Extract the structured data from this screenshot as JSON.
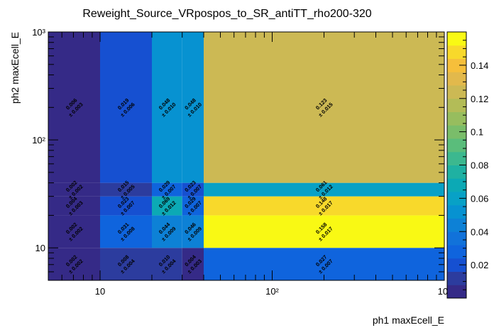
{
  "chart_data": {
    "type": "heatmap",
    "title": "Reweight_Source_VRpospos_to_SR_antiTT_rho200-320",
    "xlabel": "ph1 maxEcell_E",
    "ylabel": "ph2 maxEcell_E",
    "xscale": "log",
    "yscale": "log",
    "xlim": [
      5,
      1000
    ],
    "ylim": [
      5,
      1000
    ],
    "x_edges": [
      5,
      10,
      20,
      30,
      40,
      1000
    ],
    "y_edges": [
      5,
      10,
      20,
      30,
      40,
      1000
    ],
    "x_ticks": [
      {
        "value": 10,
        "label": "10"
      },
      {
        "value": 100,
        "label": "10²"
      },
      {
        "value": 1000,
        "label": "10³"
      }
    ],
    "y_ticks": [
      {
        "value": 10,
        "label": "10"
      },
      {
        "value": 100,
        "label": "10²"
      },
      {
        "value": 1000,
        "label": "10³"
      }
    ],
    "zlim": [
      0,
      0.16
    ],
    "z_ticks": [
      "0.02",
      "0.04",
      "0.06",
      "0.08",
      "0.1",
      "0.12",
      "0.14"
    ],
    "z_tick_values": [
      0.02,
      0.04,
      0.06,
      0.08,
      0.1,
      0.12,
      0.14
    ],
    "grid": false,
    "cells": [
      {
        "ix": 0,
        "iy": 0,
        "value": 0.002,
        "label": "0.002",
        "err": "± 0.002"
      },
      {
        "ix": 1,
        "iy": 0,
        "value": 0.008,
        "label": "0.008",
        "err": "± 0.004"
      },
      {
        "ix": 2,
        "iy": 0,
        "value": 0.01,
        "label": "0.010",
        "err": "± 0.004"
      },
      {
        "ix": 3,
        "iy": 0,
        "value": 0.004,
        "label": "0.004",
        "err": "± 0.003"
      },
      {
        "ix": 4,
        "iy": 0,
        "value": 0.027,
        "label": "0.027",
        "err": "± 0.007"
      },
      {
        "ix": 0,
        "iy": 1,
        "value": 0.002,
        "label": "0.002",
        "err": "± 0.002"
      },
      {
        "ix": 1,
        "iy": 1,
        "value": 0.031,
        "label": "0.031",
        "err": "± 0.008"
      },
      {
        "ix": 2,
        "iy": 1,
        "value": 0.044,
        "label": "0.044",
        "err": "± 0.009"
      },
      {
        "ix": 3,
        "iy": 1,
        "value": 0.046,
        "label": "0.046",
        "err": "± 0.009"
      },
      {
        "ix": 4,
        "iy": 1,
        "value": 0.158,
        "label": "0.158",
        "err": "± 0.017"
      },
      {
        "ix": 0,
        "iy": 2,
        "value": 0.004,
        "label": "0.004",
        "err": "± 0.003"
      },
      {
        "ix": 1,
        "iy": 2,
        "value": 0.023,
        "label": "0.023",
        "err": "± 0.007"
      },
      {
        "ix": 2,
        "iy": 2,
        "value": 0.069,
        "label": "0.069",
        "err": "± 0.012"
      },
      {
        "ix": 3,
        "iy": 2,
        "value": 0.029,
        "label": "0.029",
        "err": "± 0.007"
      },
      {
        "ix": 4,
        "iy": 2,
        "value": 0.148,
        "label": "0.148",
        "err": "± 0.017"
      },
      {
        "ix": 0,
        "iy": 3,
        "value": 0.002,
        "label": "0.002",
        "err": "± 0.002"
      },
      {
        "ix": 1,
        "iy": 3,
        "value": 0.015,
        "label": "0.015",
        "err": "± 0.005"
      },
      {
        "ix": 2,
        "iy": 3,
        "value": 0.029,
        "label": "0.029",
        "err": "± 0.007"
      },
      {
        "ix": 3,
        "iy": 3,
        "value": 0.023,
        "label": "0.023",
        "err": "± 0.007"
      },
      {
        "ix": 4,
        "iy": 3,
        "value": 0.061,
        "label": "0.061",
        "err": "± 0.012"
      },
      {
        "ix": 0,
        "iy": 4,
        "value": 0.006,
        "label": "0.006",
        "err": "± 0.003"
      },
      {
        "ix": 1,
        "iy": 4,
        "value": 0.019,
        "label": "0.019",
        "err": "± 0.006"
      },
      {
        "ix": 2,
        "iy": 4,
        "value": 0.048,
        "label": "0.048",
        "err": "± 0.010"
      },
      {
        "ix": 3,
        "iy": 4,
        "value": 0.048,
        "label": "0.048",
        "err": "± 0.010"
      },
      {
        "ix": 4,
        "iy": 4,
        "value": 0.123,
        "label": "0.123",
        "err": "± 0.015"
      }
    ],
    "palette": [
      "#352a87",
      "#2c3c9e",
      "#1650d1",
      "#0f64dd",
      "#1172da",
      "#0d81d6",
      "#0792d1",
      "#08a1c6",
      "#0ca9b5",
      "#1fb1a2",
      "#3cb88f",
      "#5abd7b",
      "#7abd6a",
      "#97bd5e",
      "#b3bc57",
      "#ccb954",
      "#e2b94c",
      "#f6bf3b",
      "#f8d92b",
      "#f9f914"
    ],
    "bar_colors": [
      "#352a87",
      "#2c3c9e",
      "#1650d1",
      "#0f64dd",
      "#1172da",
      "#0d81d6",
      "#0792d1",
      "#08a1c6",
      "#0ca9b5",
      "#1fb1a2",
      "#3cb88f",
      "#5abd7b",
      "#7abd6a",
      "#97bd5e",
      "#b3bc57",
      "#ccb954",
      "#e2b94c",
      "#f6bf3b",
      "#f8d92b",
      "#f9f914"
    ]
  }
}
